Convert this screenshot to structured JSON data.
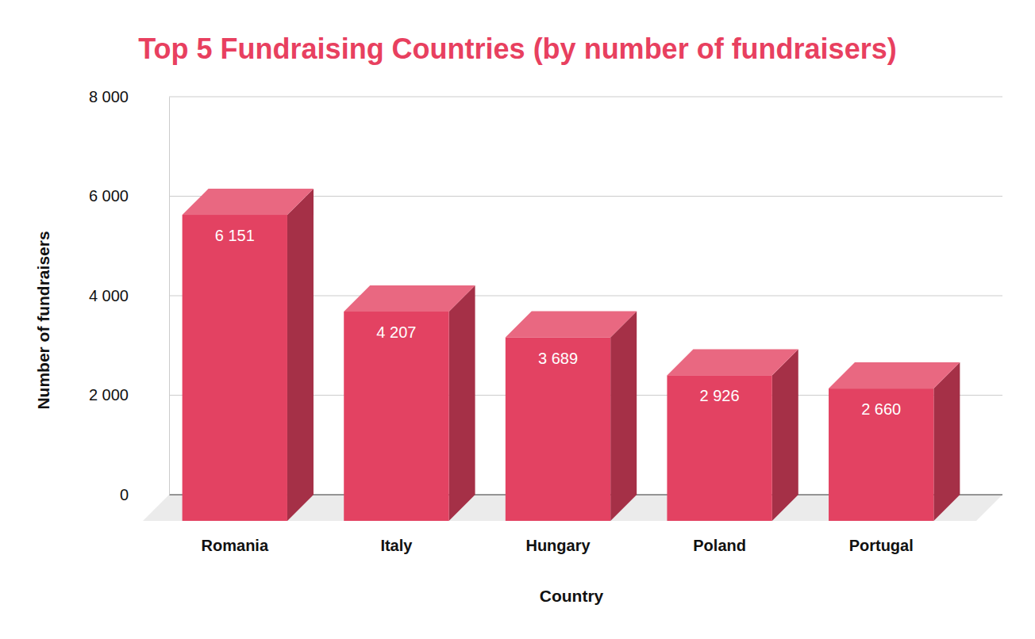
{
  "chart_data": {
    "type": "bar",
    "title": "Top 5 Fundraising Countries (by number of fundraisers)",
    "x_label": "Country",
    "y_label": "Number of fundraisers",
    "categories": [
      "Romania",
      "Italy",
      "Hungary",
      "Poland",
      "Portugal"
    ],
    "values": [
      6151,
      4207,
      3689,
      2926,
      2660
    ],
    "value_labels": [
      "6 151",
      "4 207",
      "3 689",
      "2 926",
      "2 660"
    ],
    "data_labels": true,
    "color": "#e34262",
    "ylim": [
      0,
      8000
    ],
    "yticks": [
      0,
      {
        "value": 2000,
        "label": "2 000"
      },
      {
        "value": 4000,
        "label": "4 000"
      },
      {
        "value": 6000,
        "label": "6 000"
      },
      {
        "value": 8000,
        "label": "8 000"
      }
    ],
    "grid": true
  }
}
